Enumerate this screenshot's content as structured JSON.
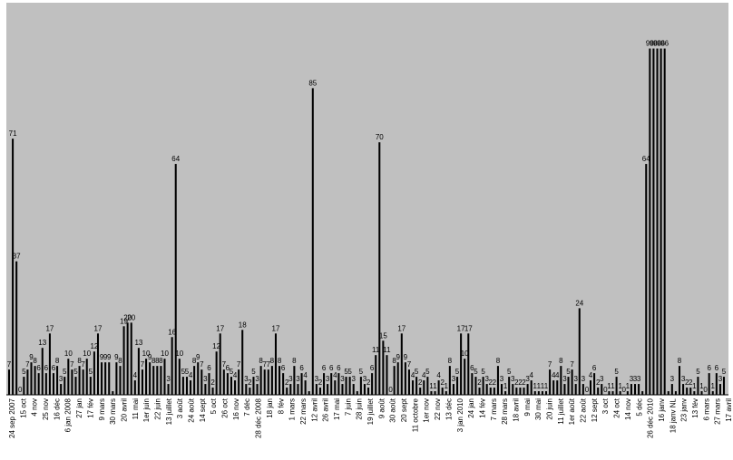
{
  "chart_data": {
    "type": "bar",
    "title": "",
    "xlabel": "",
    "ylabel": "",
    "ylim": [
      0,
      100
    ],
    "grid": false,
    "legend": "none",
    "plot_background": "#c0c0c0",
    "bar_color": "#000000",
    "values": [
      7,
      71,
      37,
      0,
      5,
      7,
      9,
      8,
      6,
      13,
      6,
      17,
      6,
      8,
      3,
      5,
      10,
      7,
      5,
      8,
      7,
      10,
      5,
      12,
      17,
      9,
      9,
      9,
      1,
      9,
      8,
      19,
      20,
      20,
      4,
      13,
      7,
      10,
      9,
      8,
      8,
      8,
      10,
      3,
      16,
      64,
      10,
      5,
      5,
      4,
      8,
      9,
      7,
      3,
      6,
      2,
      12,
      17,
      7,
      6,
      5,
      4,
      7,
      18,
      3,
      2,
      5,
      3,
      8,
      7,
      7,
      8,
      17,
      8,
      6,
      2,
      3,
      8,
      3,
      6,
      4,
      1,
      85,
      3,
      2,
      6,
      3,
      6,
      4,
      6,
      3,
      5,
      5,
      3,
      1,
      5,
      3,
      2,
      6,
      11,
      70,
      15,
      11,
      0,
      8,
      9,
      17,
      9,
      7,
      4,
      5,
      2,
      4,
      5,
      1,
      1,
      4,
      2,
      1,
      8,
      3,
      5,
      17,
      10,
      17,
      6,
      5,
      2,
      5,
      3,
      2,
      2,
      8,
      3,
      1,
      5,
      3,
      2,
      2,
      2,
      3,
      4,
      1,
      1,
      1,
      1,
      7,
      4,
      4,
      8,
      3,
      5,
      7,
      3,
      24,
      3,
      0,
      4,
      6,
      2,
      3,
      0,
      1,
      1,
      5,
      1,
      0,
      1,
      3,
      3,
      3,
      1,
      64,
      96,
      96,
      96,
      96,
      96,
      1,
      3,
      1,
      8,
      3,
      2,
      2,
      1,
      5,
      1,
      0,
      6,
      1,
      6,
      3,
      5
    ],
    "data_labels": [
      "7",
      "71",
      "37",
      "0",
      "5",
      "7",
      "9",
      "8",
      "6",
      "13",
      "6",
      "17",
      "6",
      "8",
      "3",
      "5",
      "10",
      "7",
      "5",
      "8",
      "7",
      "10",
      "5",
      "12",
      "17",
      "9",
      "9",
      "9",
      "",
      "9",
      "8",
      "19",
      "20",
      "20",
      "4",
      "13",
      "7",
      "10",
      "9",
      "8",
      "8",
      "8",
      "10",
      "3",
      "16",
      "64",
      "10",
      "5",
      "5",
      "4",
      "8",
      "9",
      "7",
      "3",
      "6",
      "2",
      "12",
      "17",
      "7",
      "6",
      "5",
      "4",
      "7",
      "18",
      "3",
      "2",
      "5",
      "3",
      "8",
      "7",
      "7",
      "8",
      "17",
      "8",
      "6",
      "2",
      "3",
      "8",
      "3",
      "6",
      "4",
      "",
      "85",
      "3",
      "2",
      "6",
      "3",
      "6",
      "4",
      "6",
      "3",
      "5",
      "5",
      "3",
      "",
      "5",
      "3",
      "2",
      "6",
      "11",
      "70",
      "15",
      "11",
      "0",
      "8",
      "9",
      "17",
      "9",
      "7",
      "4",
      "5",
      "2",
      "4",
      "5",
      "1",
      "1",
      "4",
      "2",
      "1",
      "8",
      "3",
      "5",
      "17",
      "10",
      "17",
      "6",
      "5",
      "2",
      "5",
      "3",
      "2",
      "2",
      "8",
      "3",
      "1",
      "5",
      "3",
      "2",
      "2",
      "2",
      "3",
      "4",
      "1",
      "1",
      "1",
      "1",
      "7",
      "4",
      "4",
      "8",
      "3",
      "5",
      "7",
      "3",
      "24",
      "3",
      "0",
      "4",
      "6",
      "2",
      "3",
      "0",
      "1",
      "1",
      "5",
      "1",
      "0",
      "1",
      "3",
      "3",
      "3",
      "",
      "64",
      "96",
      "96",
      "96",
      "96",
      "96",
      "",
      "3",
      "",
      "8",
      "3",
      "2",
      "2",
      "1",
      "5",
      "1",
      "0",
      "6",
      "1",
      "6",
      "3",
      "5"
    ],
    "tick_labels": [
      "24 sep 2007",
      "15 oct",
      "4 nov",
      "25 nov",
      "16 déc",
      "6 jan 2008",
      "27 jan",
      "17 fév",
      "9 mars",
      "30 mars",
      "20 avril",
      "11 mai",
      "1er juin",
      "22 juin",
      "13 juillet",
      "3 août",
      "24 août",
      "14 sept",
      "5 oct",
      "26 oct",
      "16 nov",
      "7 déc",
      "28 déc 2008",
      "18 jan",
      "8 fév",
      "1 mars",
      "22 mars",
      "12 avril",
      "26 avril",
      "17 mai",
      "7 juin",
      "28 juin",
      "19 juillet",
      "9 août",
      "30 août",
      "20 sept",
      "11 octobre",
      "1er nov",
      "22 nov",
      "13 déc",
      "3 jan 2010",
      "24 jan",
      "14 fév",
      "7 mars",
      "28 mars",
      "18 avril",
      "9 mai",
      "30 mai",
      "20 juin",
      "11 juillet",
      "1er août",
      "22 août",
      "12 sept",
      "3 oct",
      "24 oct",
      "14 nov",
      "5 déc",
      "26 déc 2010",
      "16 janv",
      "18 janv NL",
      "23 janv",
      "13 fév",
      "6 mars",
      "27 mars",
      "17 avril"
    ]
  }
}
